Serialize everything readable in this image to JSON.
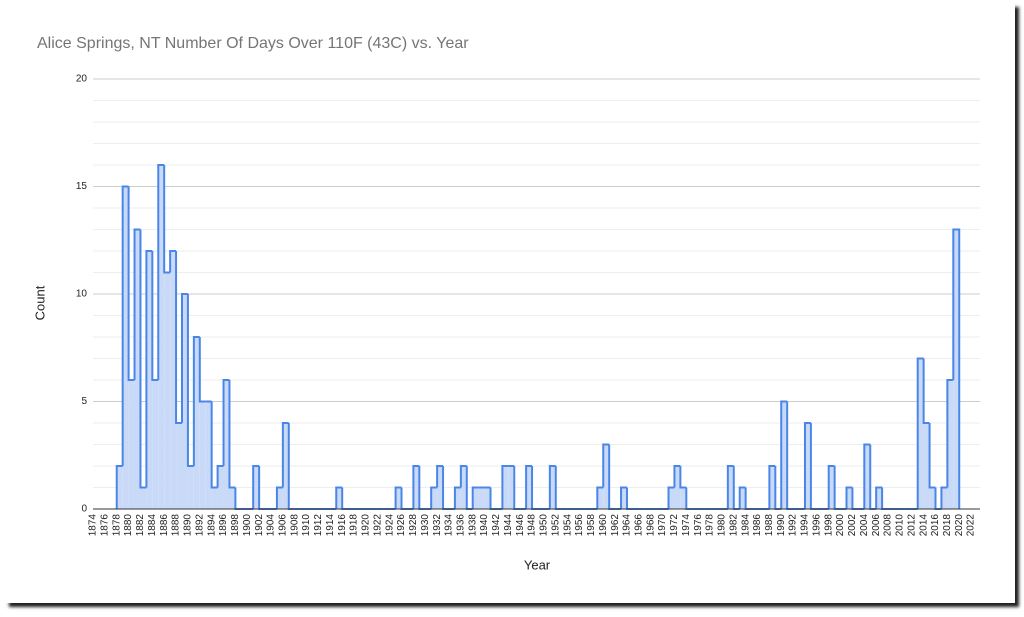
{
  "chart_data": {
    "type": "step-area",
    "title": "Alice Springs, NT  Number Of Days Over 110F (43C) vs. Year",
    "x_label": "Year",
    "y_label": "Count",
    "x": [
      1878,
      1879,
      1880,
      1881,
      1882,
      1883,
      1884,
      1885,
      1886,
      1887,
      1888,
      1889,
      1890,
      1891,
      1892,
      1893,
      1894,
      1895,
      1896,
      1897,
      1898,
      1899,
      1900,
      1901,
      1902,
      1903,
      1904,
      1905,
      1906,
      1907,
      1908,
      1909,
      1910,
      1911,
      1912,
      1913,
      1914,
      1915,
      1916,
      1917,
      1918,
      1919,
      1920,
      1921,
      1922,
      1923,
      1924,
      1925,
      1926,
      1927,
      1928,
      1929,
      1930,
      1931,
      1932,
      1933,
      1934,
      1935,
      1936,
      1937,
      1938,
      1939,
      1940,
      1941,
      1942,
      1943,
      1944,
      1945,
      1946,
      1947,
      1948,
      1949,
      1950,
      1951,
      1952,
      1953,
      1954,
      1955,
      1956,
      1957,
      1958,
      1959,
      1960,
      1961,
      1962,
      1963,
      1964,
      1965,
      1966,
      1967,
      1968,
      1969,
      1970,
      1971,
      1972,
      1973,
      1974,
      1975,
      1976,
      1977,
      1978,
      1979,
      1980,
      1981,
      1982,
      1983,
      1984,
      1985,
      1986,
      1987,
      1988,
      1989,
      1990,
      1991,
      1992,
      1993,
      1994,
      1995,
      1996,
      1997,
      1998,
      1999,
      2000,
      2001,
      2002,
      2003,
      2004,
      2005,
      2006,
      2007,
      2008,
      2009,
      2010,
      2011,
      2012,
      2013,
      2014,
      2015,
      2016,
      2017,
      2018,
      2019
    ],
    "values": [
      2,
      15,
      6,
      13,
      1,
      12,
      6,
      16,
      11,
      12,
      4,
      10,
      2,
      8,
      5,
      5,
      1,
      2,
      6,
      1,
      0,
      0,
      0,
      2,
      0,
      0,
      0,
      1,
      4,
      0,
      0,
      0,
      0,
      0,
      0,
      0,
      0,
      1,
      0,
      0,
      0,
      0,
      0,
      0,
      0,
      0,
      0,
      1,
      0,
      0,
      2,
      0,
      0,
      1,
      2,
      0,
      0,
      1,
      2,
      0,
      1,
      1,
      1,
      0,
      0,
      2,
      2,
      0,
      0,
      2,
      0,
      0,
      0,
      2,
      0,
      0,
      0,
      0,
      0,
      0,
      0,
      1,
      3,
      0,
      0,
      1,
      0,
      0,
      0,
      0,
      0,
      0,
      0,
      1,
      2,
      1,
      0,
      0,
      0,
      0,
      0,
      0,
      0,
      2,
      0,
      1,
      0,
      0,
      0,
      0,
      2,
      0,
      5,
      0,
      0,
      0,
      4,
      0,
      0,
      0,
      2,
      0,
      0,
      1,
      0,
      0,
      3,
      0,
      1,
      0,
      0,
      0,
      0,
      0,
      0,
      7,
      4,
      1,
      0,
      1,
      6,
      13
    ],
    "color": "#4a86e8",
    "fill": "#c9daf8",
    "xlim": [
      1874,
      2023.5
    ],
    "xticks": [
      1874,
      1876,
      1878,
      1880,
      1882,
      1884,
      1886,
      1888,
      1890,
      1892,
      1894,
      1896,
      1898,
      1900,
      1902,
      1904,
      1906,
      1908,
      1910,
      1912,
      1914,
      1916,
      1918,
      1920,
      1922,
      1924,
      1926,
      1928,
      1930,
      1932,
      1934,
      1936,
      1938,
      1940,
      1942,
      1944,
      1946,
      1948,
      1950,
      1952,
      1954,
      1956,
      1958,
      1960,
      1962,
      1964,
      1966,
      1968,
      1970,
      1972,
      1974,
      1976,
      1978,
      1980,
      1982,
      1984,
      1986,
      1988,
      1990,
      1992,
      1994,
      1996,
      1998,
      2000,
      2002,
      2004,
      2006,
      2008,
      2010,
      2012,
      2014,
      2016,
      2018,
      2020,
      2022
    ],
    "ylim": [
      0,
      20
    ],
    "yticks": [
      0,
      5,
      10,
      15,
      20
    ],
    "grid": true,
    "minor_grid_step": 1
  }
}
